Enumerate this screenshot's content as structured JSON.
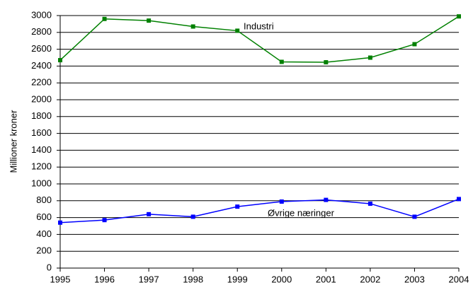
{
  "chart_data": {
    "type": "line",
    "y_label": "Millioner kroner",
    "x": [
      1995,
      1996,
      1997,
      1998,
      1999,
      2000,
      2001,
      2002,
      2003,
      2004
    ],
    "series": [
      {
        "name": "Industri",
        "color": "#008000",
        "values": [
          2470,
          2960,
          2940,
          2870,
          2820,
          2450,
          2445,
          2500,
          2660,
          2990
        ]
      },
      {
        "name": "Øvrige næringer",
        "color": "#0000ff",
        "values": [
          540,
          570,
          640,
          610,
          730,
          790,
          810,
          765,
          610,
          820
        ]
      }
    ],
    "xlim": [
      1995,
      2004
    ],
    "xticks": [
      1995,
      1996,
      1997,
      1998,
      1999,
      2000,
      2001,
      2002,
      2003,
      2004
    ],
    "ylim": [
      0,
      3000
    ],
    "yticks": [
      0,
      200,
      400,
      600,
      800,
      1000,
      1200,
      1400,
      1600,
      1800,
      2000,
      2200,
      2400,
      2600,
      2800,
      3000
    ],
    "grid": true
  }
}
